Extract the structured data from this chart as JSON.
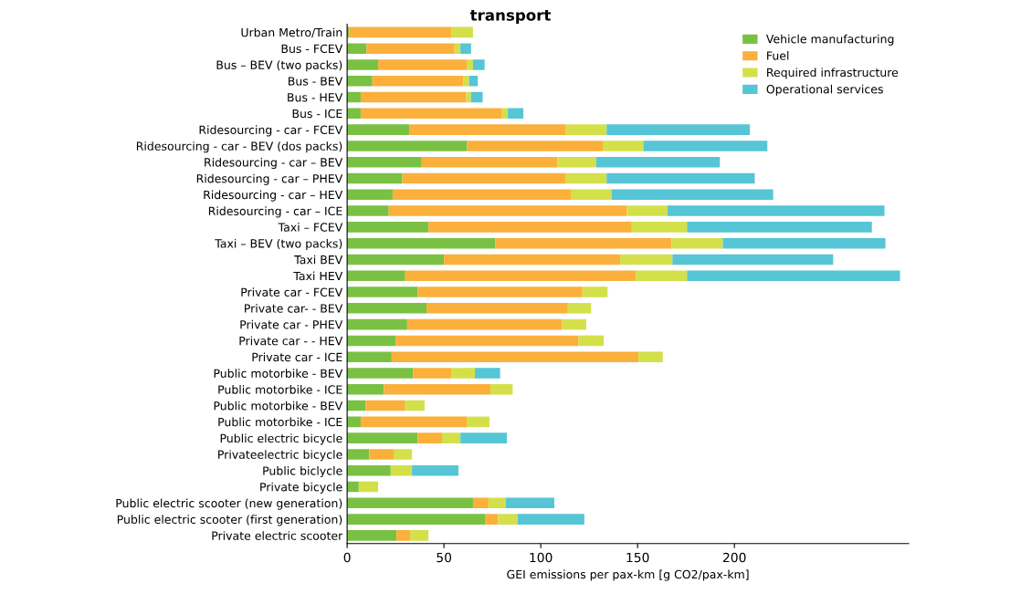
{
  "chart_data": {
    "type": "bar",
    "orientation": "horizontal",
    "stacked": true,
    "title": "transport",
    "xlabel": "GEI emissions per pax-km [g CO2/pax-km]",
    "categories": [
      "Urban Metro/Train",
      "Bus - FCEV",
      "Bus – BEV (two packs)",
      "Bus - BEV",
      "Bus - HEV",
      "Bus - ICE",
      "Ridesourcing - car - FCEV",
      "Ridesourcing - car - BEV (dos packs)",
      "Ridesourcing - car – BEV",
      "Ridesourcing - car – PHEV",
      "Ridesourcing - car – HEV",
      "Ridesourcing - car – ICE",
      "Taxi – FCEV",
      "Taxi – BEV (two packs)",
      "Taxi BEV",
      "Taxi HEV",
      "Private car - FCEV",
      "Private car- - BEV",
      "Private car - PHEV",
      "Private car - - HEV",
      "Private car - ICE",
      "Public motorbike - BEV",
      "Public motorbike - ICE",
      "Public motorbike - BEV",
      "Public motorbike - ICE",
      "Public electric bicycle",
      "Privateelectric bicycle",
      "Public biclycle",
      "Private bicycle",
      "Public electric scooter (new generation)",
      "Public electric scooter (first generation)",
      "Private electric scooter"
    ],
    "series": [
      {
        "name": "Vehicle manufacturing",
        "color": "#7ac143",
        "values": [
          1,
          10,
          16,
          13,
          7,
          7,
          32,
          62,
          38.5,
          28.5,
          23.5,
          21.5,
          42,
          76.5,
          50,
          30,
          36.5,
          41,
          31,
          25,
          23,
          34,
          19,
          9.5,
          7,
          36.5,
          11.5,
          22.5,
          6,
          65,
          71.5,
          25.5
        ]
      },
      {
        "name": "Fuel",
        "color": "#fbb03b",
        "values": [
          53,
          45.5,
          46,
          47,
          54.5,
          73,
          81,
          70,
          70,
          84.5,
          92,
          123,
          105,
          91,
          91,
          119,
          85,
          73,
          80,
          94.5,
          127.5,
          20,
          55,
          20.5,
          55,
          12.5,
          12.5,
          null,
          null,
          8,
          6.5,
          7
        ]
      },
      {
        "name": "Required infrastructure",
        "color": "#d4e04a",
        "values": [
          11,
          3,
          3,
          3,
          2.5,
          3,
          21,
          21,
          20,
          21,
          21,
          21,
          28.5,
          26.5,
          27,
          26.5,
          13,
          12,
          12.5,
          13,
          12.5,
          12,
          11.5,
          10,
          11.5,
          9.5,
          9.5,
          11,
          10,
          9,
          10,
          9.5
        ]
      },
      {
        "name": "Operational services",
        "color": "#56c5d5",
        "values": [
          null,
          5.5,
          6,
          4.5,
          6,
          8,
          74,
          64,
          64,
          76.5,
          83.5,
          112,
          95.5,
          84,
          83,
          110,
          null,
          null,
          null,
          null,
          null,
          13,
          null,
          null,
          null,
          24,
          null,
          24,
          null,
          25,
          34.5,
          null
        ]
      }
    ],
    "xlim": [
      0,
      290
    ],
    "xticks": [
      0,
      50,
      100,
      150,
      200
    ],
    "legend": "top right",
    "grid": false
  }
}
